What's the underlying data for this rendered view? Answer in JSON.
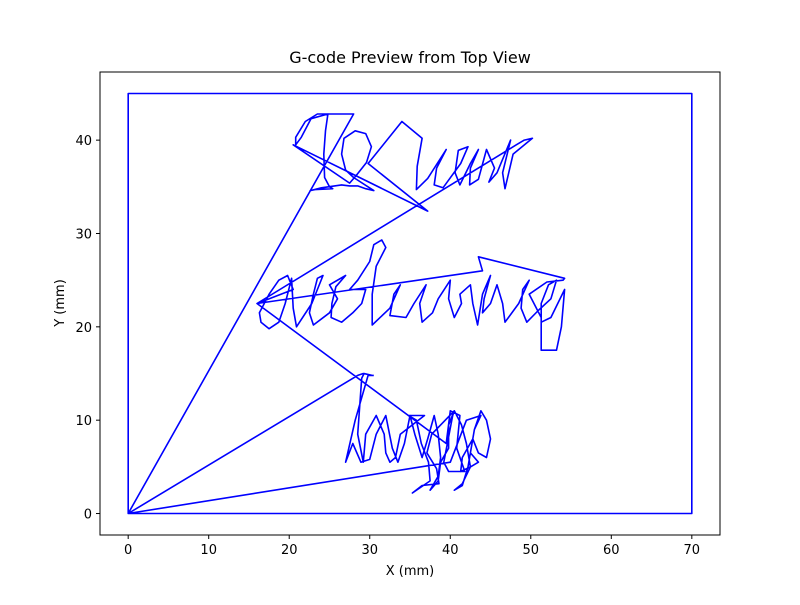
{
  "chart_data": {
    "type": "line",
    "title": "G-code Preview from Top View",
    "xlabel": "X (mm)",
    "ylabel": "Y (mm)",
    "xlim": [
      -3.5,
      73.5
    ],
    "ylim": [
      -2.3,
      47.3
    ],
    "xticks": [
      0,
      10,
      20,
      30,
      40,
      50,
      60,
      70
    ],
    "yticks": [
      0,
      10,
      20,
      30,
      40
    ],
    "grid": false,
    "line_color": "#0000ff",
    "series": [
      {
        "points": [
          [
            0,
            0
          ],
          [
            0,
            45
          ],
          [
            70,
            45
          ],
          [
            70,
            0
          ],
          [
            0,
            0
          ],
          [
            28,
            42.8
          ],
          [
            23.5,
            42.8
          ],
          [
            22,
            42
          ],
          [
            20.8,
            40.3
          ],
          [
            20.8,
            39.5
          ],
          [
            21.5,
            40.3
          ],
          [
            22.7,
            42.3
          ],
          [
            24.8,
            42.8
          ],
          [
            24.5,
            41
          ],
          [
            24.3,
            38.5
          ],
          [
            24.4,
            36
          ],
          [
            25,
            35
          ],
          [
            25.4,
            34.8
          ],
          [
            23.2,
            34.7
          ],
          [
            22.6,
            34.6
          ],
          [
            24,
            34.9
          ],
          [
            26.5,
            35.2
          ],
          [
            27.5,
            35.1
          ],
          [
            28.5,
            35.1
          ],
          [
            29.5,
            34.8
          ],
          [
            30.5,
            34.6
          ],
          [
            28,
            36
          ],
          [
            27,
            36.8
          ],
          [
            26.5,
            38.5
          ],
          [
            26.8,
            40.2
          ],
          [
            28.2,
            41
          ],
          [
            29.5,
            40.7
          ],
          [
            30.2,
            39.3
          ],
          [
            29.6,
            37.6
          ],
          [
            28.3,
            36.2
          ],
          [
            27.5,
            35.4
          ],
          [
            20.5,
            39.5
          ],
          [
            37.2,
            32.4
          ],
          [
            29.8,
            37.5
          ],
          [
            34,
            42
          ],
          [
            36.5,
            40.2
          ],
          [
            35.9,
            37.2
          ],
          [
            35.8,
            34.7
          ],
          [
            37.2,
            35.9
          ],
          [
            39.5,
            39
          ],
          [
            38.3,
            37
          ],
          [
            38,
            35.2
          ],
          [
            39.1,
            34.9
          ],
          [
            41.3,
            37.5
          ],
          [
            42.2,
            39.3
          ],
          [
            41,
            38.9
          ],
          [
            40.6,
            36.5
          ],
          [
            41.2,
            35.2
          ],
          [
            42.5,
            37.5
          ],
          [
            43.5,
            39
          ],
          [
            42.5,
            37
          ],
          [
            42.4,
            35.2
          ],
          [
            43.5,
            35.8
          ],
          [
            44.5,
            39
          ],
          [
            45.5,
            37
          ],
          [
            44.8,
            35.5
          ],
          [
            45.8,
            36.5
          ],
          [
            47.5,
            40
          ],
          [
            46.5,
            36.5
          ],
          [
            46.8,
            34.8
          ],
          [
            47.8,
            38.5
          ],
          [
            50.2,
            40.2
          ],
          [
            49.2,
            40
          ],
          [
            48.2,
            39.5
          ],
          [
            16,
            22.5
          ],
          [
            20.5,
            24
          ],
          [
            19.8,
            25.5
          ],
          [
            18.7,
            25
          ],
          [
            17.5,
            23.5
          ],
          [
            16.3,
            21.5
          ],
          [
            16.5,
            20.5
          ],
          [
            17.5,
            19.8
          ],
          [
            18.7,
            20.5
          ],
          [
            19.5,
            22.5
          ],
          [
            20.3,
            25.2
          ],
          [
            20.5,
            22
          ],
          [
            20.9,
            20
          ],
          [
            22.8,
            22.5
          ],
          [
            24.2,
            25.5
          ],
          [
            23.5,
            25.2
          ],
          [
            23,
            23.5
          ],
          [
            22.5,
            21.5
          ],
          [
            23,
            20.2
          ],
          [
            25,
            21.5
          ],
          [
            26,
            23
          ],
          [
            25,
            24.5
          ],
          [
            27,
            25.5
          ],
          [
            25.8,
            24.3
          ],
          [
            25.3,
            22.5
          ],
          [
            25.2,
            21
          ],
          [
            26.5,
            20.5
          ],
          [
            27.9,
            21.5
          ],
          [
            29,
            22.5
          ],
          [
            29.5,
            24
          ],
          [
            27.5,
            24
          ],
          [
            28.5,
            25
          ],
          [
            30,
            27
          ],
          [
            30.5,
            28.8
          ],
          [
            31.5,
            29.3
          ],
          [
            32,
            28.5
          ],
          [
            30.8,
            26.5
          ],
          [
            30.3,
            23.5
          ],
          [
            30.3,
            20.2
          ],
          [
            32.5,
            22
          ],
          [
            33.8,
            24.5
          ],
          [
            33,
            23.5
          ],
          [
            32.5,
            21.2
          ],
          [
            34.5,
            21
          ],
          [
            35.5,
            22.5
          ],
          [
            37,
            24.5
          ],
          [
            36.2,
            22.5
          ],
          [
            36.5,
            20.5
          ],
          [
            37.8,
            21.5
          ],
          [
            38.5,
            23
          ],
          [
            40,
            25
          ],
          [
            39.8,
            23
          ],
          [
            40.5,
            21
          ],
          [
            41.4,
            22.5
          ],
          [
            41.2,
            23.5
          ],
          [
            42.5,
            24.5
          ],
          [
            42.8,
            22.5
          ],
          [
            43.4,
            20.2
          ],
          [
            44,
            23.5
          ],
          [
            45,
            25.5
          ],
          [
            44.2,
            23
          ],
          [
            44,
            21.5
          ],
          [
            45,
            22.5
          ],
          [
            45.8,
            24.5
          ],
          [
            46.5,
            22.5
          ],
          [
            46.8,
            20.5
          ],
          [
            48.5,
            22.5
          ],
          [
            49.8,
            25
          ],
          [
            49,
            24
          ],
          [
            48.8,
            22
          ],
          [
            49.5,
            20.5
          ],
          [
            51,
            21.8
          ],
          [
            52.5,
            23
          ],
          [
            53.2,
            25
          ],
          [
            52.2,
            24.5
          ],
          [
            51.3,
            22.5
          ],
          [
            51.3,
            20.5
          ],
          [
            52.5,
            21
          ],
          [
            54.2,
            24
          ],
          [
            53.8,
            20
          ],
          [
            53.2,
            17.5
          ],
          [
            51.3,
            17.5
          ],
          [
            51.3,
            21
          ],
          [
            49.8,
            23.5
          ],
          [
            52,
            24.8
          ],
          [
            54,
            25
          ],
          [
            54.2,
            25.2
          ],
          [
            43.5,
            27.5
          ],
          [
            44,
            26
          ],
          [
            16,
            22.5
          ],
          [
            39.5,
            7.5
          ],
          [
            40,
            11
          ],
          [
            41.2,
            10.5
          ],
          [
            40.8,
            7
          ],
          [
            41.8,
            4.5
          ],
          [
            39.8,
            4.5
          ],
          [
            39.2,
            5.5
          ],
          [
            40.3,
            10.5
          ],
          [
            40.5,
            11
          ],
          [
            37.7,
            8.5
          ],
          [
            37.1,
            6.5
          ],
          [
            38.3,
            4.8
          ],
          [
            38.6,
            3.2
          ],
          [
            36.5,
            3
          ],
          [
            35.3,
            2.2
          ],
          [
            37.5,
            3.5
          ],
          [
            37.3,
            5.5
          ],
          [
            36.4,
            7.5
          ],
          [
            35.8,
            10
          ],
          [
            34.8,
            10.5
          ],
          [
            36.8,
            10.5
          ],
          [
            33.8,
            8.5
          ],
          [
            33.2,
            6
          ],
          [
            32.5,
            5.5
          ],
          [
            32,
            6.5
          ],
          [
            31.8,
            8.5
          ],
          [
            30.8,
            10.5
          ],
          [
            29.5,
            8.5
          ],
          [
            29.2,
            5.5
          ],
          [
            28.5,
            8.5
          ],
          [
            29,
            14.5
          ],
          [
            29.3,
            15
          ],
          [
            30.3,
            14.8
          ],
          [
            29.2,
            15
          ],
          [
            28.5,
            14.8
          ],
          [
            0,
            0
          ],
          [
            40,
            5.5
          ],
          [
            42,
            10
          ],
          [
            43.8,
            10.5
          ],
          [
            43,
            9
          ],
          [
            42.5,
            6.5
          ],
          [
            43.5,
            5.5
          ],
          [
            42.5,
            5
          ],
          [
            41.3,
            4.5
          ],
          [
            41.5,
            6
          ],
          [
            42.8,
            8
          ],
          [
            43.5,
            6.5
          ],
          [
            44.5,
            6
          ],
          [
            45,
            8
          ],
          [
            44.5,
            10
          ],
          [
            43.8,
            11
          ],
          [
            43,
            9
          ],
          [
            42.2,
            5
          ],
          [
            41.5,
            3
          ],
          [
            40.5,
            2.5
          ],
          [
            41.5,
            3.2
          ],
          [
            42.5,
            5
          ],
          [
            42,
            7.5
          ],
          [
            41.4,
            9.5
          ],
          [
            40.5,
            11
          ],
          [
            39.8,
            9.5
          ],
          [
            39.8,
            7
          ],
          [
            38.8,
            5.5
          ],
          [
            38.5,
            3.5
          ],
          [
            37.5,
            2.5
          ],
          [
            38.5,
            4
          ],
          [
            38.8,
            6
          ],
          [
            38.5,
            8.5
          ],
          [
            38,
            10.5
          ],
          [
            37.2,
            8
          ],
          [
            36.5,
            6
          ],
          [
            35.6,
            8.5
          ],
          [
            35,
            10.5
          ],
          [
            34.3,
            7.5
          ],
          [
            33.5,
            5.5
          ],
          [
            32.8,
            7
          ],
          [
            32,
            10.5
          ],
          [
            30.8,
            8.5
          ],
          [
            30,
            5.8
          ],
          [
            28.9,
            5.5
          ],
          [
            27.9,
            7.5
          ],
          [
            27,
            5.5
          ],
          [
            28.2,
            10
          ],
          [
            29.8,
            14.8
          ],
          [
            30.5,
            14.8
          ]
        ]
      }
    ]
  }
}
